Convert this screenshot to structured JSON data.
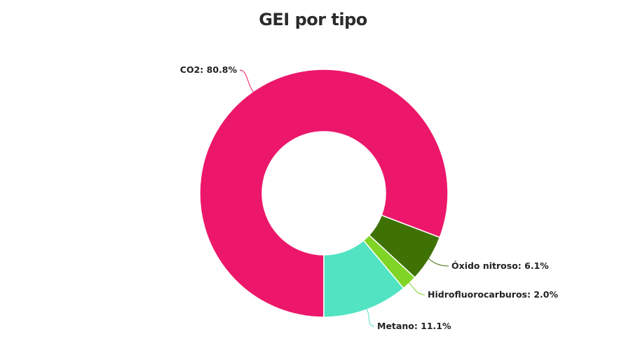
{
  "chart_data": {
    "type": "pie",
    "variant": "donut",
    "title": "GEI por tipo",
    "slices": [
      {
        "name": "CO2",
        "value": 80.8,
        "label": "CO2: 80.8%",
        "color": "#ec176a"
      },
      {
        "name": "Óxido nitroso",
        "value": 6.1,
        "label": "Óxido nitroso: 6.1%",
        "color": "#3f7205"
      },
      {
        "name": "Hidrofluorocarburos",
        "value": 2.0,
        "label": "Hidrofluorocarburos: 2.0%",
        "color": "#7fd426"
      },
      {
        "name": "Metano",
        "value": 11.1,
        "label": "Metano: 11.1%",
        "color": "#51e3c2"
      }
    ],
    "legend": "none",
    "data_labels": "outside with connector lines"
  }
}
